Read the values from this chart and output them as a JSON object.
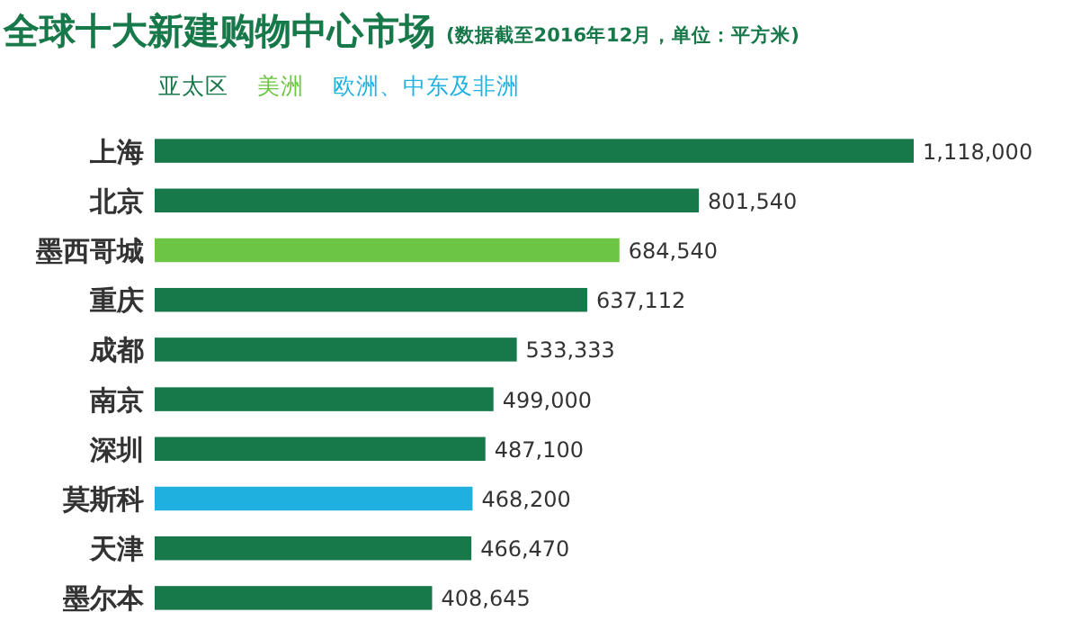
{
  "chart_data": {
    "type": "bar",
    "orientation": "horizontal",
    "title": "全球十大新建购物中心市场",
    "subtitle": "(数据截至2016年12月，单位：平方米)",
    "legend": "top left",
    "categories": [
      "上海",
      "北京",
      "墨西哥城",
      "重庆",
      "成都",
      "南京",
      "深圳",
      "莫斯科",
      "天津",
      "墨尔本"
    ],
    "series": [
      {
        "name": "亚太区",
        "color": "#17784a",
        "values": [
          1118000,
          801540,
          null,
          637112,
          533333,
          499000,
          487100,
          null,
          466470,
          408645
        ],
        "value_labels": [
          "1,118,000",
          "801,540",
          null,
          "637,112",
          "533,333",
          "499,000",
          "487,100",
          null,
          "466,470",
          "408,645"
        ]
      },
      {
        "name": "美洲",
        "color": "#6cc644",
        "values": [
          null,
          null,
          684540,
          null,
          null,
          null,
          null,
          null,
          null,
          null
        ],
        "value_labels": [
          null,
          null,
          "684,540",
          null,
          null,
          null,
          null,
          null,
          null,
          null
        ]
      },
      {
        "name": "欧洲、中东及非洲",
        "color": "#1fb0e0",
        "values": [
          null,
          null,
          null,
          null,
          null,
          null,
          null,
          468200,
          null,
          null
        ],
        "value_labels": [
          null,
          null,
          null,
          null,
          null,
          null,
          null,
          "468,200",
          null,
          null
        ]
      }
    ]
  }
}
